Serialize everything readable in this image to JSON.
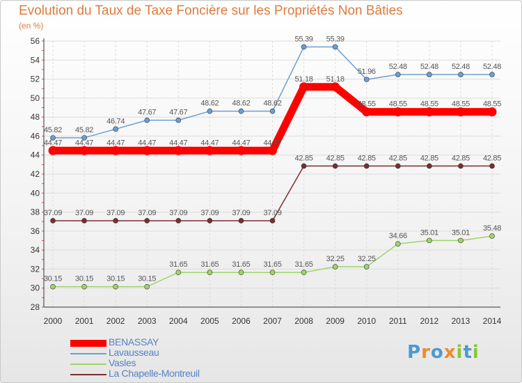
{
  "title": "Evolution du Taux de Taxe Foncière sur les Propriétés Non Bâties",
  "subtitle": "(en %)",
  "logo": {
    "letters": [
      "P",
      "r",
      "o",
      "x",
      "i",
      "t",
      "i"
    ],
    "colors": [
      "#4a9ad4",
      "#f08a2a",
      "#4a9ad4",
      "#f08a2a",
      "#8ac43a",
      "#4a9ad4",
      "#8ac43a"
    ]
  },
  "chart_data": {
    "type": "line",
    "x": [
      "2000",
      "2001",
      "2002",
      "2003",
      "2004",
      "2005",
      "2006",
      "2007",
      "2008",
      "2009",
      "2010",
      "2011",
      "2012",
      "2013",
      "2014"
    ],
    "ylim": [
      28,
      56
    ],
    "yticks": [
      28,
      30,
      32,
      34,
      36,
      38,
      40,
      42,
      44,
      46,
      48,
      50,
      52,
      54,
      56
    ],
    "grid": true,
    "legend_position": "bottom-left",
    "series": [
      {
        "name": "BENASSAY",
        "color": "#ff0000",
        "values": [
          44.47,
          44.47,
          44.47,
          44.47,
          44.47,
          44.47,
          44.47,
          44.47,
          51.18,
          51.18,
          48.55,
          48.55,
          48.55,
          48.55,
          48.55
        ],
        "labels": [
          "44.47",
          "44.47",
          "44.47",
          "44.47",
          "44.47",
          "44.47",
          "44.47",
          "44.47",
          "51.18",
          "51.18",
          "48.55",
          "48.55",
          "48.55",
          "48.55",
          "48.55"
        ]
      },
      {
        "name": "Lavausseau",
        "color": "#6a9fd4",
        "values": [
          45.82,
          45.82,
          46.74,
          47.67,
          47.67,
          48.62,
          48.62,
          48.62,
          55.39,
          55.39,
          51.96,
          52.48,
          52.48,
          52.48,
          52.48
        ],
        "labels": [
          "45.82",
          "45.82",
          "46.74",
          "47.67",
          "47.67",
          "48.62",
          "48.62",
          "48.62",
          "55.39",
          "55.39",
          "51.96",
          "52.48",
          "52.48",
          "52.48",
          "52.48"
        ]
      },
      {
        "name": "Vasles",
        "color": "#9fd46a",
        "values": [
          30.15,
          30.15,
          30.15,
          30.15,
          31.65,
          31.65,
          31.65,
          31.65,
          31.65,
          32.25,
          32.25,
          34.66,
          35.01,
          35.01,
          35.48
        ],
        "labels": [
          "30.15",
          "30.15",
          "30.15",
          "30.15",
          "31.65",
          "31.65",
          "31.65",
          "31.65",
          "31.65",
          "32.25",
          "32.25",
          "34.66",
          "35.01",
          "35.01",
          "35.48"
        ]
      },
      {
        "name": "La Chapelle-Montreuil",
        "color": "#7a2e2e",
        "values": [
          37.09,
          37.09,
          37.09,
          37.09,
          37.09,
          37.09,
          37.09,
          37.09,
          42.85,
          42.85,
          42.85,
          42.85,
          42.85,
          42.85,
          42.85
        ],
        "labels": [
          "37.09",
          "37.09",
          "37.09",
          "37.09",
          "37.09",
          "37.09",
          "37.09",
          "37.09",
          "42.85",
          "42.85",
          "42.85",
          "42.85",
          "42.85",
          "42.85",
          "42.85"
        ]
      }
    ]
  }
}
